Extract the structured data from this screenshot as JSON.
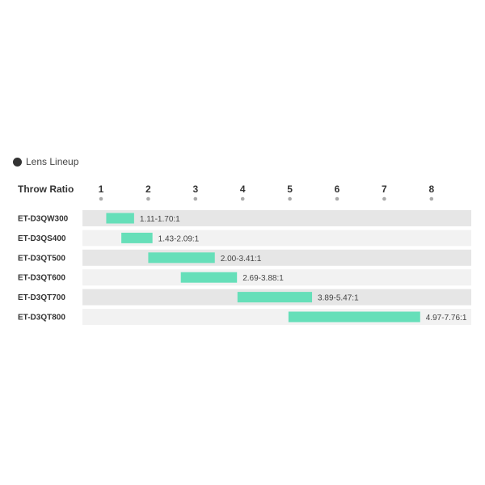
{
  "chart_data": {
    "type": "bar",
    "orientation": "horizontal-range",
    "legend": "Lens Lineup",
    "xlabel": "Throw Ratio",
    "xlim": [
      1,
      8
    ],
    "xticks": [
      "1",
      "2",
      "3",
      "4",
      "5",
      "6",
      "7",
      "8"
    ],
    "categories": [
      "ET-D3QW300",
      "ET-D3QS400",
      "ET-D3QT500",
      "ET-D3QT600",
      "ET-D3QT700",
      "ET-D3QT800"
    ],
    "ranges": [
      [
        1.11,
        1.7
      ],
      [
        1.43,
        2.09
      ],
      [
        2.0,
        3.41
      ],
      [
        2.69,
        3.88
      ],
      [
        3.89,
        5.47
      ],
      [
        4.97,
        7.76
      ]
    ],
    "labels": [
      "1.11-1.70:1",
      "1.43-2.09:1",
      "2.00-3.41:1",
      "2.69-3.88:1",
      "3.89-5.47:1",
      "4.97-7.76:1"
    ],
    "colors": {
      "bar": "#66dfb9",
      "row_dark": "#e6e6e6",
      "row_light": "#f2f2f2",
      "tick_dot": "#aaaaaa"
    }
  }
}
